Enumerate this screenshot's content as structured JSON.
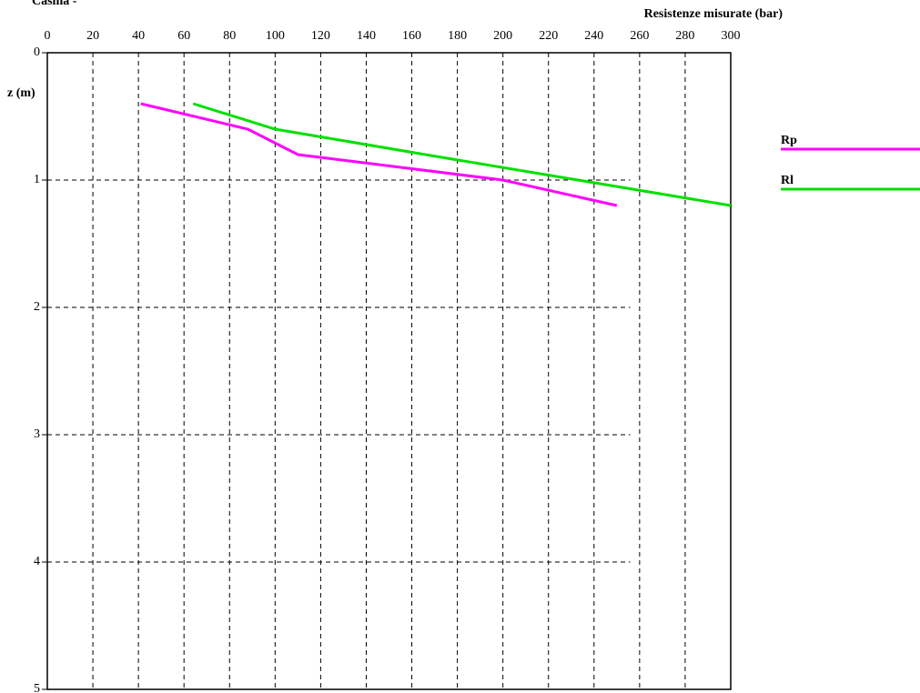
{
  "chart_data": {
    "type": "line",
    "title": "Casina -",
    "x_label": "Resistenze misurate (bar)",
    "y_label": "z (m)",
    "xlim": [
      0,
      300
    ],
    "xticks": [
      0,
      20,
      40,
      60,
      80,
      100,
      120,
      140,
      160,
      180,
      200,
      220,
      240,
      260,
      280,
      300
    ],
    "ylim": [
      5,
      0
    ],
    "yticks": [
      0,
      1,
      2,
      3,
      4,
      5
    ],
    "grid": true,
    "series": [
      {
        "name": "Rp",
        "color": "#ff00ff",
        "x": [
          41,
          88,
          110,
          200,
          250
        ],
        "values": [
          0.4,
          0.6,
          0.8,
          1.0,
          1.2
        ]
      },
      {
        "name": "Rl",
        "color": "#00e000",
        "x": [
          64,
          100,
          166,
          233,
          300
        ],
        "values": [
          0.4,
          0.6,
          0.8,
          1.0,
          1.2
        ]
      }
    ]
  }
}
